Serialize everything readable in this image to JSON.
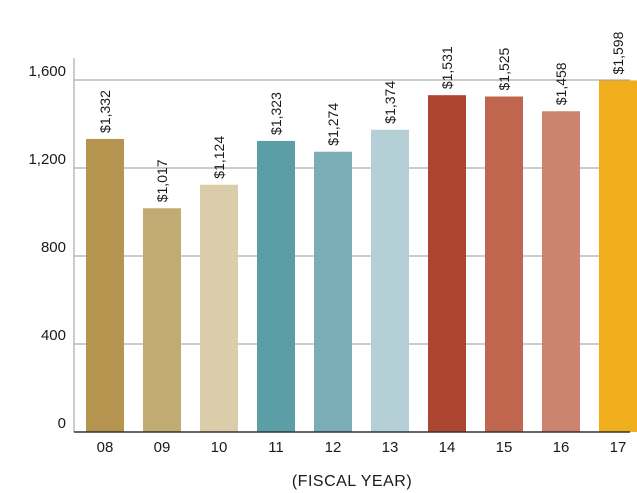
{
  "chart_data": {
    "type": "bar",
    "title": "",
    "xlabel": "(FISCAL YEAR)",
    "ylabel": "",
    "categories": [
      "08",
      "09",
      "10",
      "11",
      "12",
      "13",
      "14",
      "15",
      "16",
      "17"
    ],
    "values": [
      1332,
      1017,
      1124,
      1323,
      1274,
      1374,
      1531,
      1525,
      1458,
      1598
    ],
    "value_labels": [
      "$1,332",
      "$1,017",
      "$1,124",
      "$1,323",
      "$1,274",
      "$1,374",
      "$1,531",
      "$1,525",
      "$1,458",
      "$1,598"
    ],
    "bar_colors": [
      "#b4944f",
      "#c2aa73",
      "#dccdaa",
      "#5b9ea6",
      "#7aadb5",
      "#b4d0d6",
      "#ad4630",
      "#c0664f",
      "#cc8471",
      "#f0ad1c"
    ],
    "ylim": [
      0,
      1700
    ],
    "yticks": [
      0,
      400,
      800,
      1200,
      1600
    ],
    "ytick_labels": [
      "0",
      "400",
      "800",
      "1,200",
      "1,600"
    ],
    "grid": true,
    "gridline_color": "#9a9a9a"
  }
}
